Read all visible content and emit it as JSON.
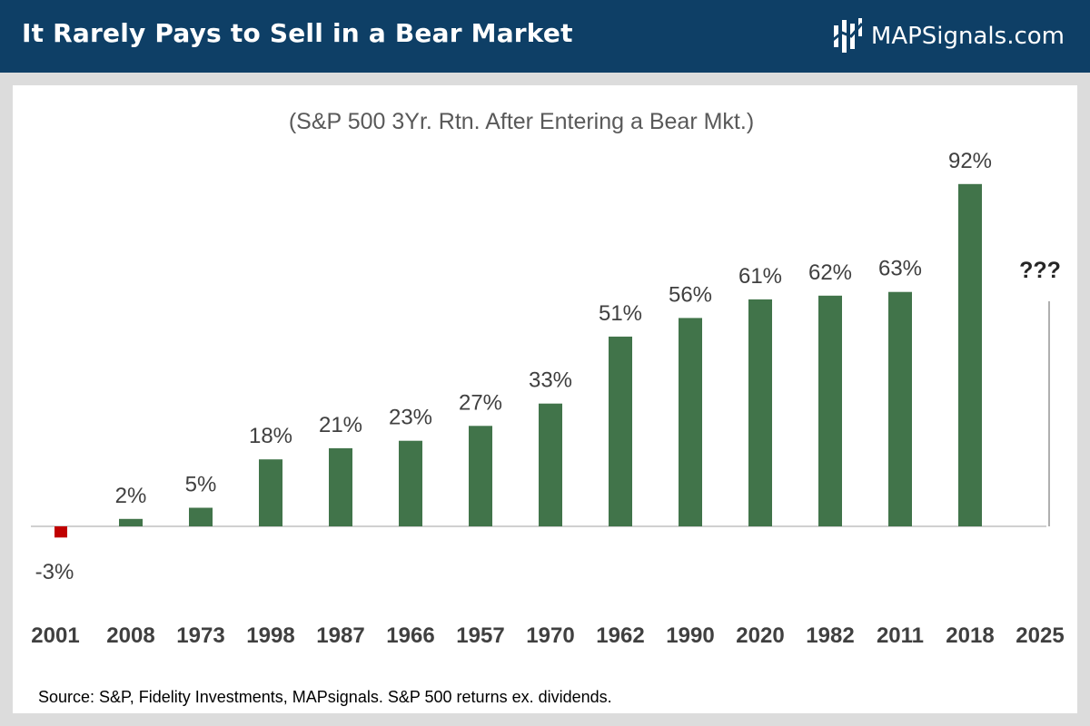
{
  "header": {
    "title": "It Rarely Pays to Sell in a Bear Market",
    "brand": "MAPSignals.com",
    "background_color": "#0e3f66"
  },
  "chart_data": {
    "type": "bar",
    "subtitle": "(S&P 500 3Yr. Rtn. After Entering a Bear Mkt.)",
    "categories": [
      "2001",
      "2008",
      "1973",
      "1998",
      "1987",
      "1966",
      "1957",
      "1970",
      "1962",
      "1990",
      "2020",
      "1982",
      "2011",
      "2018",
      "2025"
    ],
    "values": [
      -3,
      2,
      5,
      18,
      21,
      23,
      27,
      33,
      51,
      56,
      61,
      62,
      63,
      92,
      null
    ],
    "value_labels": [
      "-3%",
      "2%",
      "5%",
      "18%",
      "21%",
      "23%",
      "27%",
      "33%",
      "51%",
      "56%",
      "61%",
      "62%",
      "63%",
      "92%",
      "???"
    ],
    "colors": {
      "positive": "#41744a",
      "negative": "#c00000",
      "placeholder": "#b0b0b0"
    },
    "ylim": [
      -3,
      92
    ],
    "grid": false,
    "legend": "none"
  },
  "footer": {
    "source": "Source: S&P, Fidelity Investments, MAPsignals. S&P 500 returns ex. dividends."
  }
}
